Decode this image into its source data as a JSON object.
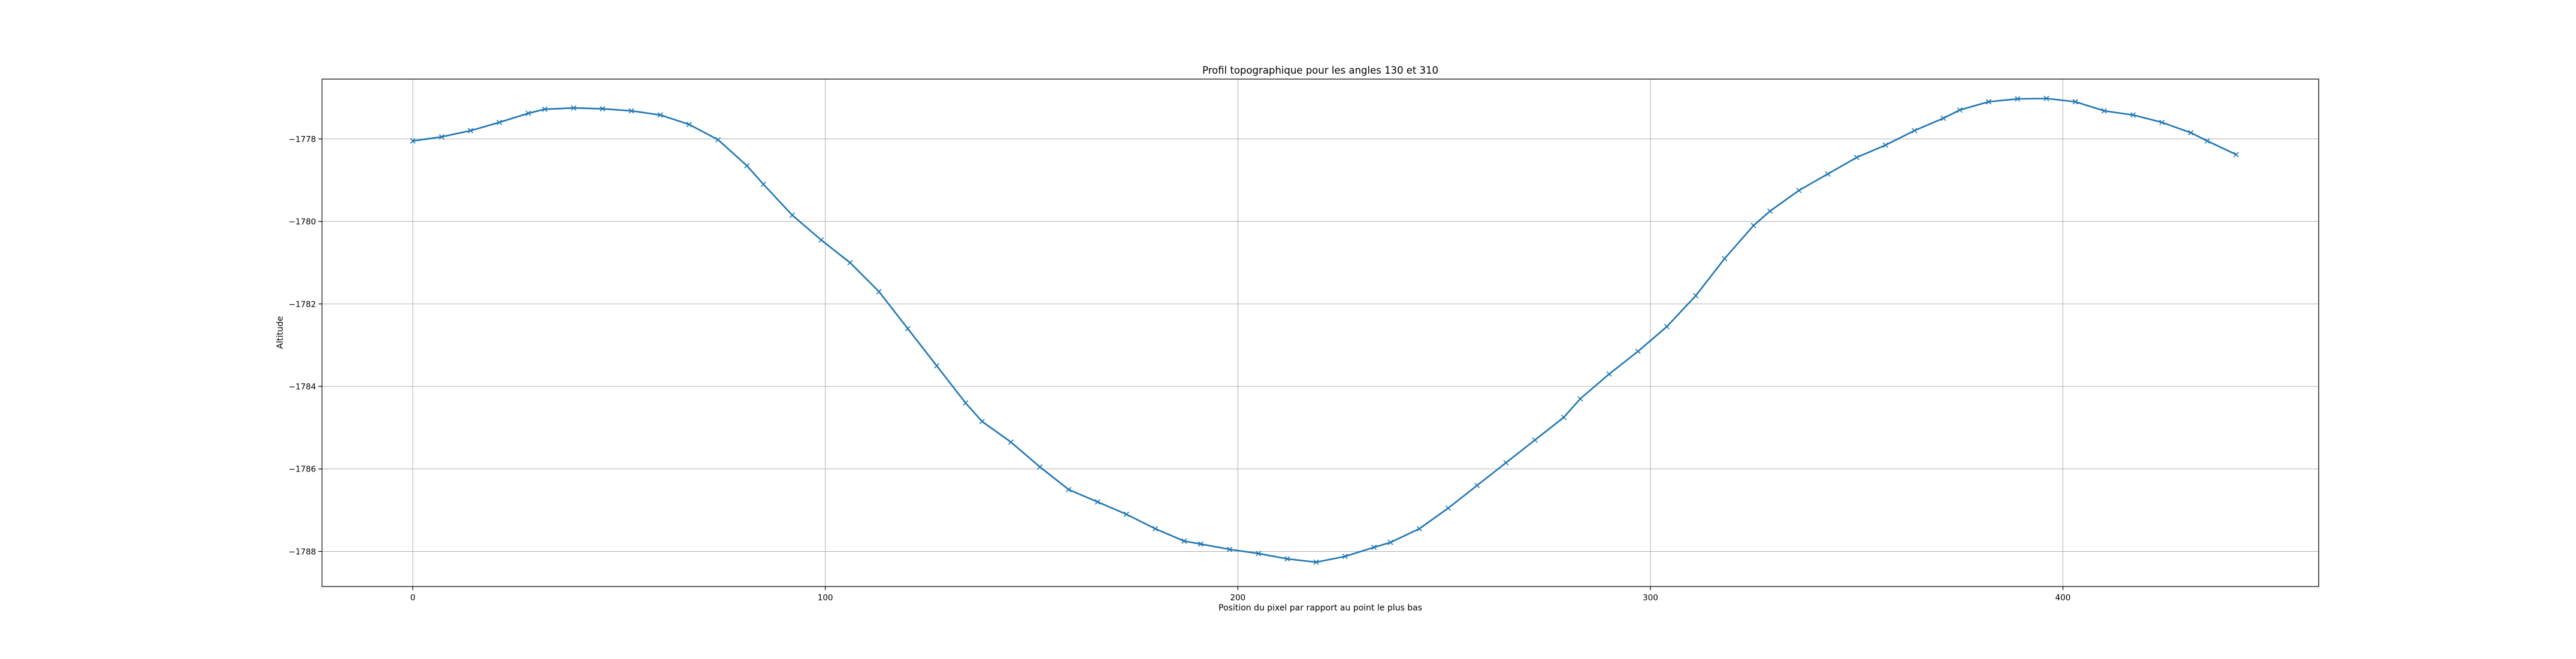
{
  "chart_data": {
    "type": "line",
    "title": "Profil topographique pour les angles 130 et 310",
    "xlabel": "Position du pixel par rapport au point le plus bas",
    "ylabel": "Altitude",
    "xlim": [
      -22,
      462
    ],
    "ylim": [
      -1788.85,
      -1776.55
    ],
    "xticks": [
      0,
      100,
      200,
      300,
      400
    ],
    "yticks": [
      -1778,
      -1780,
      -1782,
      -1784,
      -1786,
      -1788
    ],
    "xtick_labels": [
      "0",
      "100",
      "200",
      "300",
      "400"
    ],
    "ytick_labels": [
      "−1778",
      "−1780",
      "−1782",
      "−1784",
      "−1786",
      "−1788"
    ],
    "grid": true,
    "line_color": "#1f77b4",
    "marker": "x",
    "series": [
      {
        "x": [
          0,
          7,
          14,
          21,
          28,
          32,
          39,
          46,
          53,
          60,
          67,
          74,
          81,
          85,
          92,
          99,
          106,
          113,
          120,
          127,
          134,
          138,
          145,
          152,
          159,
          166,
          173,
          180,
          187,
          191,
          198,
          205,
          212,
          219,
          226,
          233,
          237,
          244,
          251,
          258,
          265,
          272,
          279,
          283,
          290,
          297,
          304,
          311,
          318,
          325,
          329,
          336,
          343,
          350,
          357,
          364,
          371,
          375,
          382,
          389,
          396,
          403,
          410,
          417,
          424,
          431,
          435,
          442
        ],
        "y": [
          -1778.05,
          -1777.95,
          -1777.8,
          -1777.6,
          -1777.38,
          -1777.28,
          -1777.25,
          -1777.27,
          -1777.32,
          -1777.42,
          -1777.65,
          -1778.02,
          -1778.65,
          -1779.1,
          -1779.85,
          -1780.45,
          -1781.0,
          -1781.7,
          -1782.6,
          -1783.5,
          -1784.4,
          -1784.85,
          -1785.35,
          -1785.95,
          -1786.5,
          -1786.8,
          -1787.1,
          -1787.45,
          -1787.75,
          -1787.82,
          -1787.95,
          -1788.05,
          -1788.18,
          -1788.26,
          -1788.12,
          -1787.9,
          -1787.78,
          -1787.45,
          -1786.95,
          -1786.4,
          -1785.85,
          -1785.3,
          -1784.75,
          -1784.3,
          -1783.7,
          -1783.15,
          -1782.55,
          -1781.8,
          -1780.9,
          -1780.1,
          -1779.75,
          -1779.25,
          -1778.85,
          -1778.45,
          -1778.15,
          -1777.8,
          -1777.5,
          -1777.3,
          -1777.1,
          -1777.03,
          -1777.02,
          -1777.1,
          -1777.32,
          -1777.42,
          -1777.6,
          -1777.85,
          -1778.05,
          -1778.38
        ]
      }
    ]
  }
}
